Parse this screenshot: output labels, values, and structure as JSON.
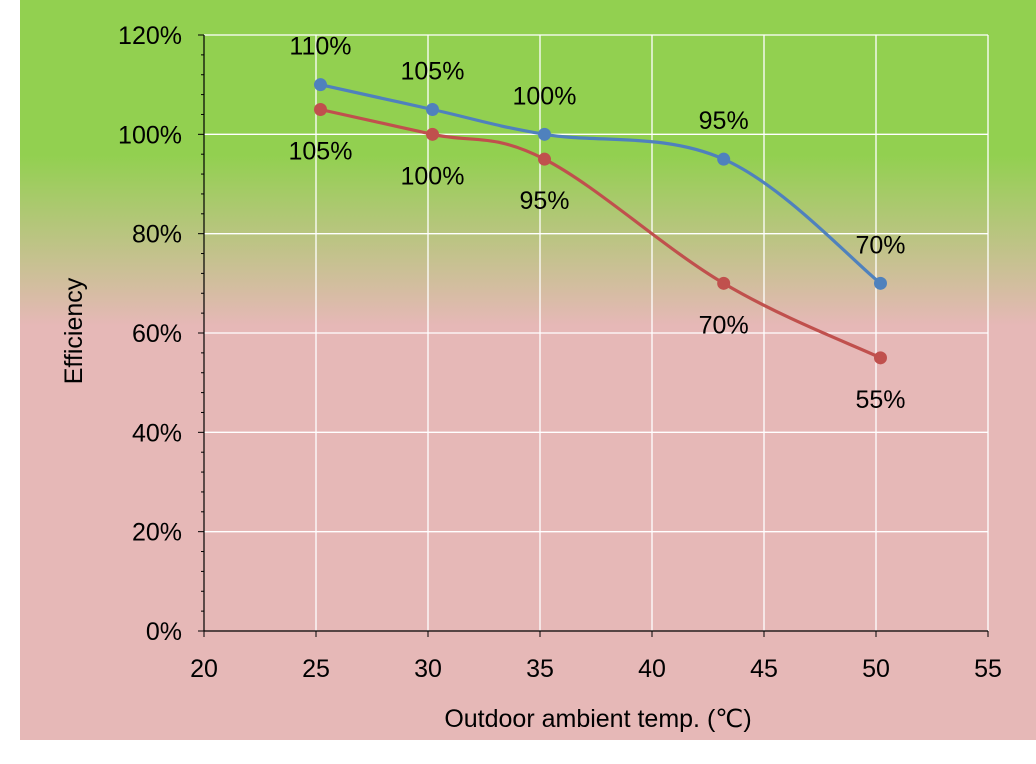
{
  "chart_data": {
    "type": "scatter",
    "title": "",
    "xlabel": "Outdoor ambient temp. (℃)",
    "ylabel": "Efficiency",
    "xlim": [
      20,
      55
    ],
    "ylim": [
      0,
      120
    ],
    "x_ticks": [
      "20",
      "25",
      "30",
      "35",
      "40",
      "45",
      "50",
      "55"
    ],
    "y_ticks": [
      "0%",
      "20%",
      "40%",
      "60%",
      "80%",
      "100%",
      "120%"
    ],
    "grid": true,
    "line_style": "smooth",
    "markers": true,
    "legend": "none",
    "background_gradient": {
      "top_color": "#92d050",
      "bottom_color": "#e6b8b7",
      "direction": "vertical"
    },
    "series": [
      {
        "color": "#4f81bd",
        "x": [
          25.2,
          30.2,
          35.2,
          43.2,
          50.2
        ],
        "y": [
          110,
          105,
          100,
          95,
          70
        ],
        "labels": [
          "110%",
          "105%",
          "100%",
          "95%",
          "70%"
        ],
        "label_position": "above"
      },
      {
        "color": "#c0504d",
        "x": [
          25.2,
          30.2,
          35.2,
          43.2,
          50.2
        ],
        "y": [
          105,
          100,
          95,
          70,
          55
        ],
        "labels": [
          "105%",
          "100%",
          "95%",
          "70%",
          "55%"
        ],
        "label_position": "below"
      }
    ]
  }
}
